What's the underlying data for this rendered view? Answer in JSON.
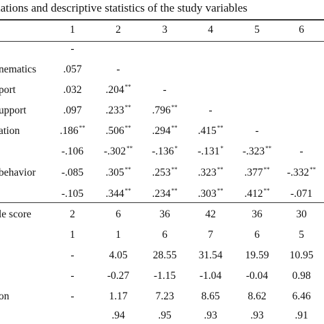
{
  "caption": "lations and descriptive statistics of the study variables",
  "columns": [
    "1",
    "2",
    "3",
    "4",
    "5",
    "6"
  ],
  "rows": [
    {
      "label": "",
      "cells": [
        "-",
        "",
        "",
        "",
        "",
        ""
      ]
    },
    {
      "label": "nematics",
      "cells": [
        ".057",
        "-",
        "",
        "",
        "",
        ""
      ]
    },
    {
      "label": "port",
      "cells": [
        ".032",
        ".204**",
        "-",
        "",
        "",
        ""
      ]
    },
    {
      "label": "upport",
      "cells": [
        ".097",
        ".233**",
        ".796**",
        "-",
        "",
        ""
      ]
    },
    {
      "label": "ation",
      "cells": [
        ".186**",
        ".506**",
        ".294**",
        ".415**",
        "-",
        ""
      ]
    },
    {
      "label": "",
      "cells": [
        "-.106",
        "-.302**",
        "-.136*",
        "-.131*",
        "-.323**",
        "-"
      ]
    },
    {
      "label": "behavior",
      "cells": [
        "-.085",
        ".305**",
        ".253**",
        ".323**",
        ".377**",
        "-.332**"
      ]
    },
    {
      "label": "",
      "cells": [
        "-.105",
        ".344**",
        ".234**",
        ".303**",
        ".412**",
        "-.071"
      ]
    },
    {
      "label": "le score",
      "cells": [
        "2",
        "6",
        "36",
        "42",
        "36",
        "30"
      ]
    },
    {
      "label": "",
      "cells": [
        "1",
        "1",
        "6",
        "7",
        "6",
        "5"
      ]
    },
    {
      "label": "",
      "cells": [
        "-",
        "4.05",
        "28.55",
        "31.54",
        "19.59",
        "10.95"
      ]
    },
    {
      "label": "",
      "cells": [
        "-",
        "-0.27",
        "-1.15",
        "-1.04",
        "-0.04",
        "0.98"
      ]
    },
    {
      "label": "on",
      "cells": [
        "-",
        "1.17",
        "7.23",
        "8.65",
        "8.62",
        "6.46"
      ]
    },
    {
      "label": "",
      "cells": [
        "",
        ".94",
        ".95",
        ".93",
        ".93",
        ".91"
      ]
    }
  ]
}
